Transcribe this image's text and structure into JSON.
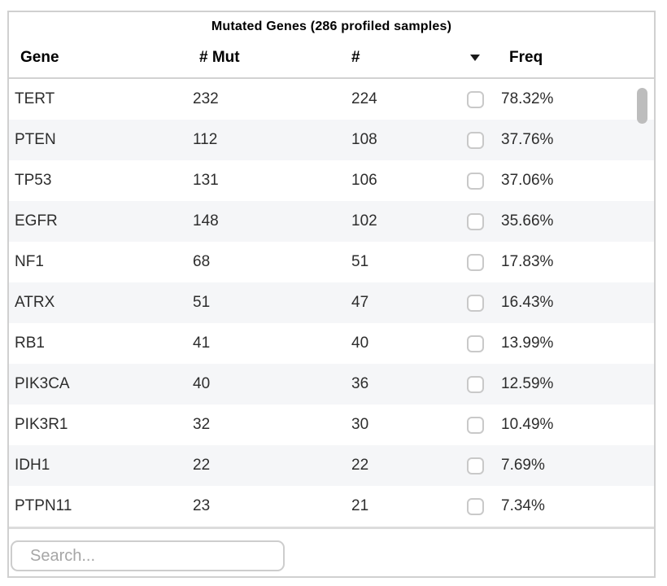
{
  "table": {
    "title": "Mutated Genes (286 profiled samples)",
    "columns": {
      "gene": "Gene",
      "mut": "# Mut",
      "count": "#",
      "freq": "Freq"
    },
    "sort": {
      "icon": "triangle-down",
      "direction": "descending"
    },
    "rows": [
      {
        "gene": "TERT",
        "mut": "232",
        "count": "224",
        "freq": "78.32%",
        "checked": false
      },
      {
        "gene": "PTEN",
        "mut": "112",
        "count": "108",
        "freq": "37.76%",
        "checked": false
      },
      {
        "gene": "TP53",
        "mut": "131",
        "count": "106",
        "freq": "37.06%",
        "checked": false
      },
      {
        "gene": "EGFR",
        "mut": "148",
        "count": "102",
        "freq": "35.66%",
        "checked": false
      },
      {
        "gene": "NF1",
        "mut": "68",
        "count": "51",
        "freq": "17.83%",
        "checked": false
      },
      {
        "gene": "ATRX",
        "mut": "51",
        "count": "47",
        "freq": "16.43%",
        "checked": false
      },
      {
        "gene": "RB1",
        "mut": "41",
        "count": "40",
        "freq": "13.99%",
        "checked": false
      },
      {
        "gene": "PIK3CA",
        "mut": "40",
        "count": "36",
        "freq": "12.59%",
        "checked": false
      },
      {
        "gene": "PIK3R1",
        "mut": "32",
        "count": "30",
        "freq": "10.49%",
        "checked": false
      },
      {
        "gene": "IDH1",
        "mut": "22",
        "count": "22",
        "freq": "7.69%",
        "checked": false
      },
      {
        "gene": "PTPN11",
        "mut": "23",
        "count": "21",
        "freq": "7.34%",
        "checked": false
      }
    ]
  },
  "search": {
    "placeholder": "Search...",
    "value": ""
  },
  "colors": {
    "stripe": "#f5f6f8",
    "border": "#d0d0d0",
    "scrollbar_thumb": "#bdbdbd",
    "text": "#2d2d2d"
  }
}
